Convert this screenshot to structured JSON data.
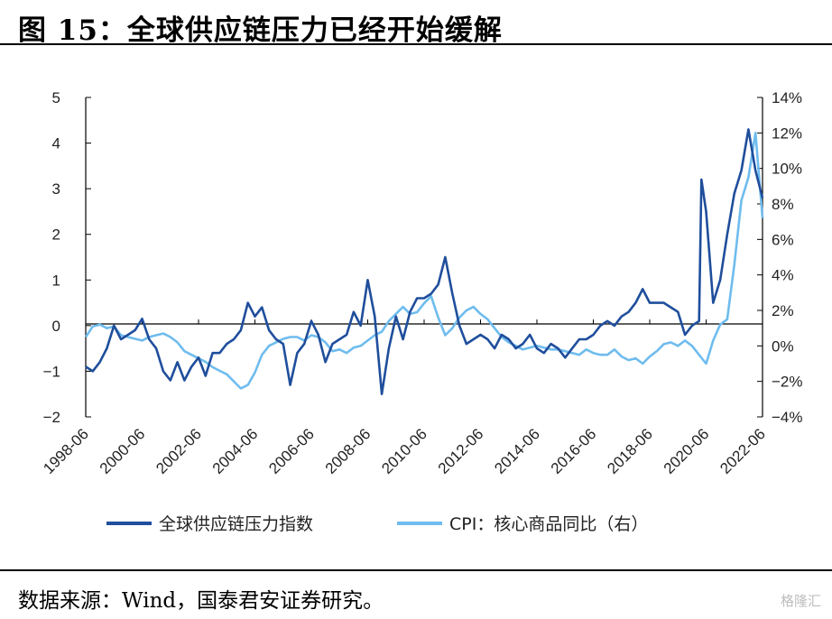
{
  "title": "图 15：全球供应链压力已经开始缓解",
  "source": "数据来源：Wind，国泰君安证券研究。",
  "watermark": "格隆汇",
  "colors": {
    "gscpi": "#1f4e9c",
    "cpi": "#6fbcee",
    "axis": "#000000"
  },
  "chart_data": {
    "type": "line",
    "title": "",
    "xlabel": "",
    "ylabel": "",
    "x_range": [
      "1998-06",
      "2022-06"
    ],
    "x_ticks": [
      "1998-06",
      "2000-06",
      "2002-06",
      "2004-06",
      "2006-06",
      "2008-06",
      "2010-06",
      "2012-06",
      "2014-06",
      "2016-06",
      "2018-06",
      "2020-06",
      "2022-06"
    ],
    "y_left": {
      "range": [
        -2,
        5
      ],
      "ticks": [
        "5",
        "4",
        "3",
        "2",
        "1",
        "0",
        "−1",
        "−2"
      ]
    },
    "y_right": {
      "range": [
        -4,
        14
      ],
      "ticks": [
        "14%",
        "12%",
        "10%",
        "8%",
        "6%",
        "4%",
        "2%",
        "0%",
        "−2%",
        "−4%"
      ]
    },
    "legend_position": "bottom",
    "series": [
      {
        "name": "全球供应链压力指数",
        "axis": "left",
        "points": [
          [
            "1998-06",
            -0.9
          ],
          [
            "1998-09",
            -1.0
          ],
          [
            "1998-12",
            -0.8
          ],
          [
            "1999-03",
            -0.5
          ],
          [
            "1999-06",
            0.0
          ],
          [
            "1999-09",
            -0.3
          ],
          [
            "1999-12",
            -0.2
          ],
          [
            "2000-03",
            -0.1
          ],
          [
            "2000-06",
            0.15
          ],
          [
            "2000-09",
            -0.3
          ],
          [
            "2000-12",
            -0.5
          ],
          [
            "2001-03",
            -1.0
          ],
          [
            "2001-06",
            -1.2
          ],
          [
            "2001-09",
            -0.8
          ],
          [
            "2001-12",
            -1.2
          ],
          [
            "2002-03",
            -0.9
          ],
          [
            "2002-06",
            -0.7
          ],
          [
            "2002-09",
            -1.1
          ],
          [
            "2002-12",
            -0.6
          ],
          [
            "2003-03",
            -0.6
          ],
          [
            "2003-06",
            -0.4
          ],
          [
            "2003-09",
            -0.3
          ],
          [
            "2003-12",
            -0.1
          ],
          [
            "2004-03",
            0.5
          ],
          [
            "2004-06",
            0.2
          ],
          [
            "2004-09",
            0.4
          ],
          [
            "2004-12",
            -0.1
          ],
          [
            "2005-03",
            -0.3
          ],
          [
            "2005-06",
            -0.4
          ],
          [
            "2005-09",
            -1.3
          ],
          [
            "2005-12",
            -0.6
          ],
          [
            "2006-03",
            -0.4
          ],
          [
            "2006-06",
            0.1
          ],
          [
            "2006-09",
            -0.2
          ],
          [
            "2006-12",
            -0.8
          ],
          [
            "2007-03",
            -0.4
          ],
          [
            "2007-06",
            -0.3
          ],
          [
            "2007-09",
            -0.2
          ],
          [
            "2007-12",
            0.3
          ],
          [
            "2008-03",
            0.0
          ],
          [
            "2008-06",
            1.0
          ],
          [
            "2008-09",
            0.2
          ],
          [
            "2008-12",
            -1.5
          ],
          [
            "2009-03",
            -0.5
          ],
          [
            "2009-06",
            0.2
          ],
          [
            "2009-09",
            -0.3
          ],
          [
            "2009-12",
            0.3
          ],
          [
            "2010-03",
            0.6
          ],
          [
            "2010-06",
            0.6
          ],
          [
            "2010-09",
            0.7
          ],
          [
            "2010-12",
            0.9
          ],
          [
            "2011-03",
            1.5
          ],
          [
            "2011-06",
            0.7
          ],
          [
            "2011-09",
            0.0
          ],
          [
            "2011-12",
            -0.4
          ],
          [
            "2012-03",
            -0.3
          ],
          [
            "2012-06",
            -0.2
          ],
          [
            "2012-09",
            -0.3
          ],
          [
            "2012-12",
            -0.5
          ],
          [
            "2013-03",
            -0.2
          ],
          [
            "2013-06",
            -0.3
          ],
          [
            "2013-09",
            -0.5
          ],
          [
            "2013-12",
            -0.4
          ],
          [
            "2014-03",
            -0.2
          ],
          [
            "2014-06",
            -0.5
          ],
          [
            "2014-09",
            -0.6
          ],
          [
            "2014-12",
            -0.4
          ],
          [
            "2015-03",
            -0.5
          ],
          [
            "2015-06",
            -0.7
          ],
          [
            "2015-09",
            -0.5
          ],
          [
            "2015-12",
            -0.3
          ],
          [
            "2016-03",
            -0.3
          ],
          [
            "2016-06",
            -0.2
          ],
          [
            "2016-09",
            0.0
          ],
          [
            "2016-12",
            0.1
          ],
          [
            "2017-03",
            0.0
          ],
          [
            "2017-06",
            0.2
          ],
          [
            "2017-09",
            0.3
          ],
          [
            "2017-12",
            0.5
          ],
          [
            "2018-03",
            0.8
          ],
          [
            "2018-06",
            0.5
          ],
          [
            "2018-09",
            0.5
          ],
          [
            "2018-12",
            0.5
          ],
          [
            "2019-03",
            0.4
          ],
          [
            "2019-06",
            0.3
          ],
          [
            "2019-09",
            -0.2
          ],
          [
            "2019-12",
            0.0
          ],
          [
            "2020-03",
            0.1
          ],
          [
            "2020-04",
            3.2
          ],
          [
            "2020-06",
            2.5
          ],
          [
            "2020-09",
            0.5
          ],
          [
            "2020-12",
            1.0
          ],
          [
            "2021-03",
            2.0
          ],
          [
            "2021-06",
            2.9
          ],
          [
            "2021-09",
            3.4
          ],
          [
            "2021-12",
            4.3
          ],
          [
            "2022-03",
            3.4
          ],
          [
            "2022-06",
            2.8
          ]
        ]
      },
      {
        "name": "CPI：核心商品同比（右）",
        "axis": "right",
        "points": [
          [
            "1998-06",
            0.5
          ],
          [
            "1998-09",
            1.1
          ],
          [
            "1998-12",
            1.2
          ],
          [
            "1999-03",
            1.0
          ],
          [
            "1999-06",
            1.1
          ],
          [
            "1999-09",
            0.6
          ],
          [
            "1999-12",
            0.5
          ],
          [
            "2000-03",
            0.4
          ],
          [
            "2000-06",
            0.3
          ],
          [
            "2000-09",
            0.5
          ],
          [
            "2000-12",
            0.6
          ],
          [
            "2001-03",
            0.7
          ],
          [
            "2001-06",
            0.5
          ],
          [
            "2001-09",
            0.2
          ],
          [
            "2001-12",
            -0.3
          ],
          [
            "2002-03",
            -0.5
          ],
          [
            "2002-06",
            -0.7
          ],
          [
            "2002-09",
            -0.9
          ],
          [
            "2002-12",
            -1.2
          ],
          [
            "2003-03",
            -1.4
          ],
          [
            "2003-06",
            -1.6
          ],
          [
            "2003-09",
            -2.0
          ],
          [
            "2003-12",
            -2.4
          ],
          [
            "2004-03",
            -2.2
          ],
          [
            "2004-06",
            -1.5
          ],
          [
            "2004-09",
            -0.5
          ],
          [
            "2004-12",
            0.0
          ],
          [
            "2005-03",
            0.2
          ],
          [
            "2005-06",
            0.4
          ],
          [
            "2005-09",
            0.5
          ],
          [
            "2005-12",
            0.5
          ],
          [
            "2006-03",
            0.3
          ],
          [
            "2006-06",
            0.6
          ],
          [
            "2006-09",
            0.5
          ],
          [
            "2006-12",
            0.2
          ],
          [
            "2007-03",
            -0.3
          ],
          [
            "2007-06",
            -0.2
          ],
          [
            "2007-09",
            -0.4
          ],
          [
            "2007-12",
            -0.1
          ],
          [
            "2008-03",
            0.0
          ],
          [
            "2008-06",
            0.3
          ],
          [
            "2008-09",
            0.6
          ],
          [
            "2008-12",
            0.8
          ],
          [
            "2009-03",
            1.4
          ],
          [
            "2009-06",
            1.8
          ],
          [
            "2009-09",
            2.2
          ],
          [
            "2009-12",
            1.8
          ],
          [
            "2010-03",
            1.9
          ],
          [
            "2010-06",
            2.4
          ],
          [
            "2010-09",
            2.8
          ],
          [
            "2010-12",
            1.6
          ],
          [
            "2011-03",
            0.6
          ],
          [
            "2011-06",
            1.0
          ],
          [
            "2011-09",
            1.6
          ],
          [
            "2011-12",
            2.0
          ],
          [
            "2012-03",
            2.2
          ],
          [
            "2012-06",
            1.8
          ],
          [
            "2012-09",
            1.5
          ],
          [
            "2012-12",
            1.0
          ],
          [
            "2013-03",
            0.5
          ],
          [
            "2013-06",
            0.2
          ],
          [
            "2013-09",
            0.0
          ],
          [
            "2013-12",
            -0.2
          ],
          [
            "2014-03",
            -0.1
          ],
          [
            "2014-06",
            0.0
          ],
          [
            "2014-09",
            -0.1
          ],
          [
            "2014-12",
            -0.2
          ],
          [
            "2015-03",
            -0.2
          ],
          [
            "2015-06",
            -0.3
          ],
          [
            "2015-09",
            -0.4
          ],
          [
            "2015-12",
            -0.5
          ],
          [
            "2016-03",
            -0.2
          ],
          [
            "2016-06",
            -0.4
          ],
          [
            "2016-09",
            -0.5
          ],
          [
            "2016-12",
            -0.5
          ],
          [
            "2017-03",
            -0.2
          ],
          [
            "2017-06",
            -0.6
          ],
          [
            "2017-09",
            -0.8
          ],
          [
            "2017-12",
            -0.7
          ],
          [
            "2018-03",
            -1.0
          ],
          [
            "2018-06",
            -0.6
          ],
          [
            "2018-09",
            -0.3
          ],
          [
            "2018-12",
            0.1
          ],
          [
            "2019-03",
            0.2
          ],
          [
            "2019-06",
            0.0
          ],
          [
            "2019-09",
            0.3
          ],
          [
            "2019-12",
            0.0
          ],
          [
            "2020-03",
            -0.5
          ],
          [
            "2020-06",
            -1.0
          ],
          [
            "2020-09",
            0.3
          ],
          [
            "2020-12",
            1.2
          ],
          [
            "2021-03",
            1.5
          ],
          [
            "2021-06",
            4.6
          ],
          [
            "2021-09",
            8.2
          ],
          [
            "2021-12",
            9.5
          ],
          [
            "2022-03",
            12.0
          ],
          [
            "2022-06",
            7.2
          ]
        ]
      }
    ]
  }
}
